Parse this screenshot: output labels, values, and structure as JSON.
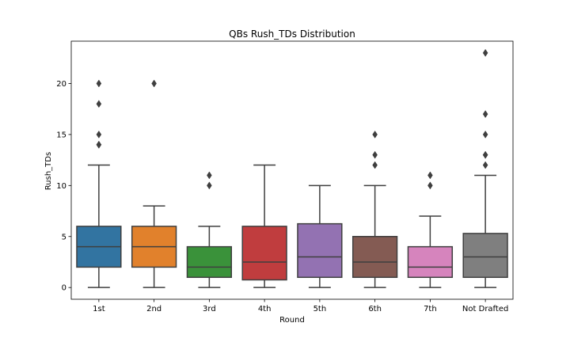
{
  "chart_data": {
    "type": "box",
    "title": "QBs Rush_TDs Distribution",
    "xlabel": "Round",
    "ylabel": "Rush_TDs",
    "ylim": [
      -1.15,
      24.15
    ],
    "yticks": [
      0,
      5,
      10,
      15,
      20
    ],
    "grid": false,
    "categories": [
      "1st",
      "2nd",
      "3rd",
      "4th",
      "5th",
      "6th",
      "7th",
      "Not Drafted"
    ],
    "colors": [
      "#3274a1",
      "#e1812c",
      "#3a923a",
      "#c03d3e",
      "#9372b2",
      "#845b53",
      "#d684bd",
      "#7f7f7f"
    ],
    "boxes": [
      {
        "category": "1st",
        "whisker_low": 0,
        "q1": 2,
        "median": 4,
        "q3": 6,
        "whisker_high": 12,
        "outliers": [
          14,
          14,
          15,
          18,
          20
        ]
      },
      {
        "category": "2nd",
        "whisker_low": 0,
        "q1": 2,
        "median": 4,
        "q3": 6,
        "whisker_high": 8,
        "outliers": [
          20
        ]
      },
      {
        "category": "3rd",
        "whisker_low": 0,
        "q1": 1,
        "median": 2,
        "q3": 4,
        "whisker_high": 6,
        "outliers": [
          10,
          11
        ]
      },
      {
        "category": "4th",
        "whisker_low": 0,
        "q1": 0.75,
        "median": 2.5,
        "q3": 6,
        "whisker_high": 12,
        "outliers": []
      },
      {
        "category": "5th",
        "whisker_low": 0,
        "q1": 1,
        "median": 3,
        "q3": 6.25,
        "whisker_high": 10,
        "outliers": []
      },
      {
        "category": "6th",
        "whisker_low": 0,
        "q1": 1,
        "median": 2.5,
        "q3": 5,
        "whisker_high": 10,
        "outliers": [
          12,
          13,
          15
        ]
      },
      {
        "category": "7th",
        "whisker_low": 0,
        "q1": 1,
        "median": 2,
        "q3": 4,
        "whisker_high": 7,
        "outliers": [
          10,
          11
        ]
      },
      {
        "category": "Not Drafted",
        "whisker_low": 0,
        "q1": 1,
        "median": 3,
        "q3": 5.3,
        "whisker_high": 11,
        "outliers": [
          12,
          13,
          13,
          15,
          17,
          23
        ]
      }
    ]
  }
}
